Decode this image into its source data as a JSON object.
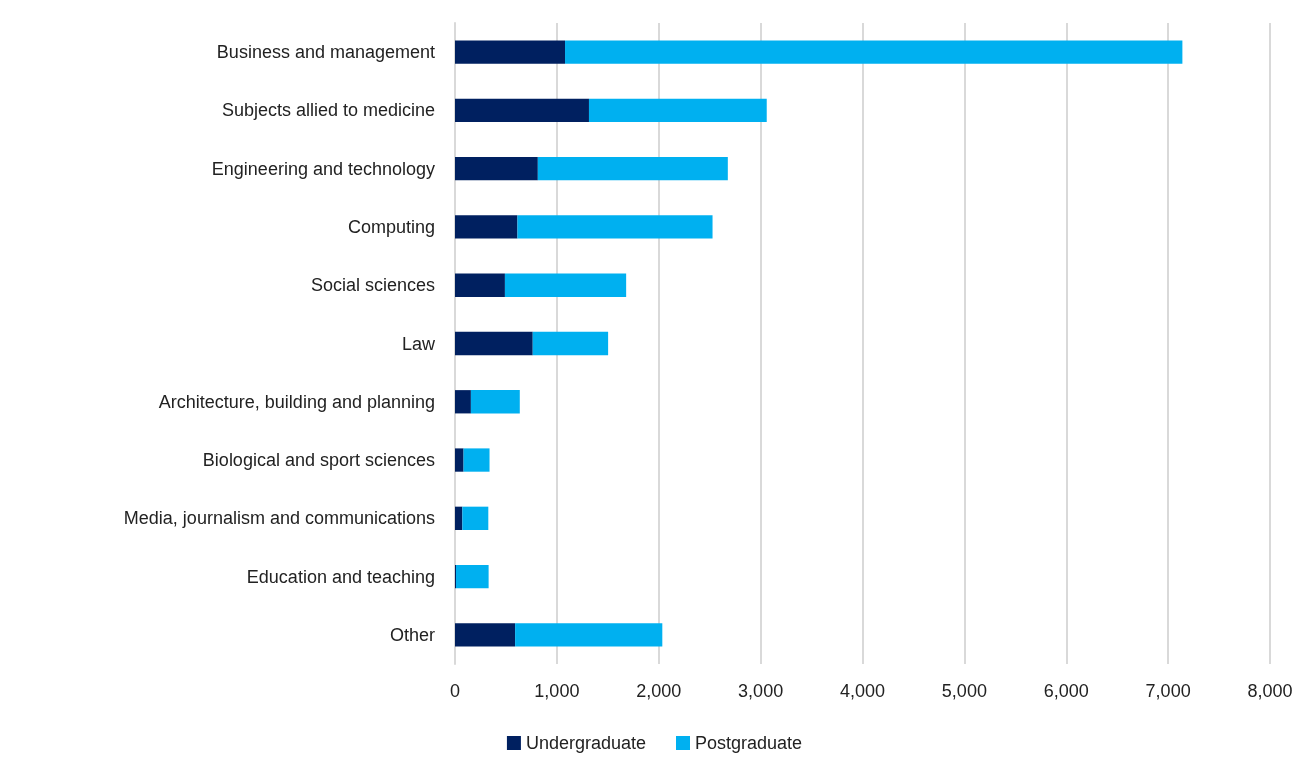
{
  "chart_data": {
    "type": "bar",
    "orientation": "horizontal",
    "stacked": true,
    "categories": [
      "Business and management",
      "Subjects allied to medicine",
      "Engineering and technology",
      "Computing",
      "Social sciences",
      "Law",
      "Architecture, building and planning",
      "Biological and sport sciences",
      "Media, journalism and communications",
      "Education and teaching",
      "Other"
    ],
    "series": [
      {
        "name": "Undergraduate",
        "color": "#002060",
        "values": [
          1080,
          1315,
          813,
          613,
          490,
          763,
          156,
          84,
          72,
          10,
          590
        ]
      },
      {
        "name": "Postgraduate",
        "color": "#00b0f0",
        "values": [
          6060,
          1745,
          1865,
          1915,
          1190,
          740,
          480,
          255,
          255,
          320,
          1445
        ]
      }
    ],
    "xlim": [
      0,
      8000
    ],
    "xticks": [
      {
        "value": 0,
        "label": "0"
      },
      {
        "value": 1000,
        "label": "1,000"
      },
      {
        "value": 2000,
        "label": "2,000"
      },
      {
        "value": 3000,
        "label": "3,000"
      },
      {
        "value": 4000,
        "label": "4,000"
      },
      {
        "value": 5000,
        "label": "5,000"
      },
      {
        "value": 6000,
        "label": "6,000"
      },
      {
        "value": 7000,
        "label": "7,000"
      },
      {
        "value": 8000,
        "label": "8,000"
      }
    ],
    "grid": "x",
    "legend": "bottom"
  }
}
